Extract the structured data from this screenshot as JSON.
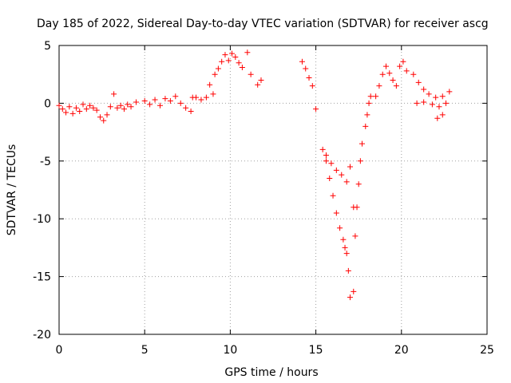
{
  "chart_data": {
    "type": "scatter",
    "title": "Day 185 of 2022, Sidereal Day-to-day VTEC variation (SDTVAR) for receiver ascg",
    "xlabel": "GPS time / hours",
    "ylabel": "SDTVAR / TECUs",
    "xlim": [
      0,
      25
    ],
    "ylim": [
      -20,
      5
    ],
    "xticks": [
      "0",
      "5",
      "10",
      "15",
      "20",
      "25"
    ],
    "yticks": [
      "5",
      "0",
      "-5",
      "-10",
      "-15",
      "-20"
    ],
    "grid": true,
    "marker": "+",
    "color": "#ff0000",
    "series": [
      {
        "name": "SDTVAR",
        "points": [
          [
            0.0,
            -0.2
          ],
          [
            0.2,
            -0.5
          ],
          [
            0.4,
            -0.8
          ],
          [
            0.6,
            -0.3
          ],
          [
            0.8,
            -0.9
          ],
          [
            1.0,
            -0.4
          ],
          [
            1.2,
            -0.7
          ],
          [
            1.4,
            -0.1
          ],
          [
            1.6,
            -0.5
          ],
          [
            1.8,
            -0.2
          ],
          [
            2.0,
            -0.4
          ],
          [
            2.2,
            -0.6
          ],
          [
            2.4,
            -1.2
          ],
          [
            2.6,
            -1.5
          ],
          [
            2.8,
            -1.0
          ],
          [
            3.0,
            -0.3
          ],
          [
            3.2,
            0.8
          ],
          [
            3.4,
            -0.4
          ],
          [
            3.6,
            -0.2
          ],
          [
            3.8,
            -0.5
          ],
          [
            4.0,
            -0.1
          ],
          [
            4.2,
            -0.3
          ],
          [
            4.5,
            0.1
          ],
          [
            5.0,
            0.2
          ],
          [
            5.3,
            -0.1
          ],
          [
            5.6,
            0.3
          ],
          [
            5.9,
            -0.2
          ],
          [
            6.2,
            0.4
          ],
          [
            6.5,
            0.2
          ],
          [
            6.8,
            0.6
          ],
          [
            7.1,
            0.0
          ],
          [
            7.4,
            -0.4
          ],
          [
            7.7,
            -0.7
          ],
          [
            7.8,
            0.5
          ],
          [
            8.0,
            0.5
          ],
          [
            8.3,
            0.3
          ],
          [
            8.6,
            0.5
          ],
          [
            8.8,
            1.6
          ],
          [
            9.0,
            0.8
          ],
          [
            9.1,
            2.5
          ],
          [
            9.3,
            3.0
          ],
          [
            9.5,
            3.6
          ],
          [
            9.7,
            4.2
          ],
          [
            9.9,
            3.7
          ],
          [
            10.1,
            4.3
          ],
          [
            10.3,
            4.0
          ],
          [
            10.5,
            3.5
          ],
          [
            10.7,
            3.1
          ],
          [
            11.0,
            4.4
          ],
          [
            11.2,
            2.5
          ],
          [
            11.6,
            1.6
          ],
          [
            11.8,
            2.0
          ],
          [
            14.2,
            3.6
          ],
          [
            14.4,
            3.0
          ],
          [
            14.6,
            2.2
          ],
          [
            14.8,
            1.5
          ],
          [
            15.0,
            -0.5
          ],
          [
            15.4,
            -4.0
          ],
          [
            15.6,
            -5.0
          ],
          [
            15.8,
            -6.5
          ],
          [
            16.0,
            -8.0
          ],
          [
            16.2,
            -9.5
          ],
          [
            16.4,
            -10.8
          ],
          [
            16.6,
            -11.8
          ],
          [
            16.7,
            -12.5
          ],
          [
            16.8,
            -13.0
          ],
          [
            16.9,
            -14.5
          ],
          [
            17.0,
            -16.8
          ],
          [
            17.2,
            -16.3
          ],
          [
            15.6,
            -4.5
          ],
          [
            15.9,
            -5.2
          ],
          [
            16.2,
            -5.8
          ],
          [
            16.5,
            -6.2
          ],
          [
            16.8,
            -6.8
          ],
          [
            17.0,
            -5.5
          ],
          [
            17.2,
            -9.0
          ],
          [
            17.3,
            -11.5
          ],
          [
            17.4,
            -9.0
          ],
          [
            17.5,
            -7.0
          ],
          [
            17.6,
            -5.0
          ],
          [
            17.7,
            -3.5
          ],
          [
            17.9,
            -2.0
          ],
          [
            18.0,
            -1.0
          ],
          [
            18.1,
            0.0
          ],
          [
            18.2,
            0.6
          ],
          [
            18.5,
            0.6
          ],
          [
            18.7,
            1.5
          ],
          [
            18.9,
            2.5
          ],
          [
            19.1,
            3.2
          ],
          [
            19.3,
            2.6
          ],
          [
            19.5,
            2.0
          ],
          [
            19.7,
            1.5
          ],
          [
            19.9,
            3.2
          ],
          [
            20.1,
            3.6
          ],
          [
            20.3,
            2.8
          ],
          [
            20.7,
            2.5
          ],
          [
            21.0,
            1.8
          ],
          [
            21.3,
            1.2
          ],
          [
            21.6,
            0.8
          ],
          [
            22.0,
            0.5
          ],
          [
            22.4,
            0.6
          ],
          [
            22.8,
            1.0
          ],
          [
            20.9,
            0.0
          ],
          [
            21.3,
            0.1
          ],
          [
            21.8,
            -0.1
          ],
          [
            22.2,
            -0.3
          ],
          [
            22.6,
            0.0
          ],
          [
            22.1,
            -1.3
          ],
          [
            22.4,
            -1.0
          ]
        ]
      }
    ]
  }
}
